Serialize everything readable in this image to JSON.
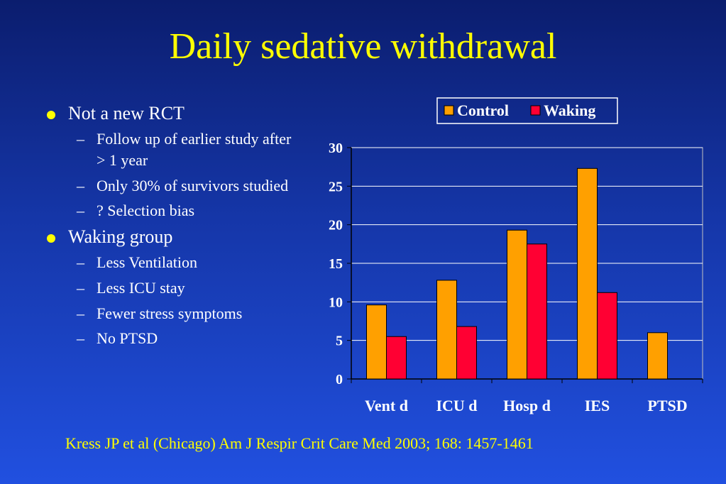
{
  "slide": {
    "title": "Daily sedative withdrawal",
    "citation": "Kress JP et al (Chicago) Am J Respir Crit Care Med 2003; 168: 1457-1461"
  },
  "bullets": {
    "b1": "Not a new RCT",
    "b1_subs": [
      "Follow up of earlier study after > 1 year",
      "Only 30% of survivors studied",
      "? Selection bias"
    ],
    "b2": "Waking group",
    "b2_subs": [
      "Less Ventilation",
      "Less ICU stay",
      "Fewer stress symptoms",
      "No PTSD"
    ]
  },
  "colors": {
    "title": "#ffff00",
    "control": "#ffa000",
    "waking": "#ff0033",
    "axis_text": "#ffffff"
  },
  "chart_data": {
    "type": "bar",
    "categories": [
      "Vent d",
      "ICU d",
      "Hosp d",
      "IES",
      "PTSD"
    ],
    "series": [
      {
        "name": "Control",
        "values": [
          9.6,
          12.8,
          19.3,
          27.3,
          6.0
        ]
      },
      {
        "name": "Waking",
        "values": [
          5.5,
          6.8,
          17.5,
          11.2,
          0
        ]
      }
    ],
    "ylim": [
      0,
      30
    ],
    "yticks": [
      0,
      5,
      10,
      15,
      20,
      25,
      30
    ],
    "grid": true,
    "legend": "top-right"
  }
}
